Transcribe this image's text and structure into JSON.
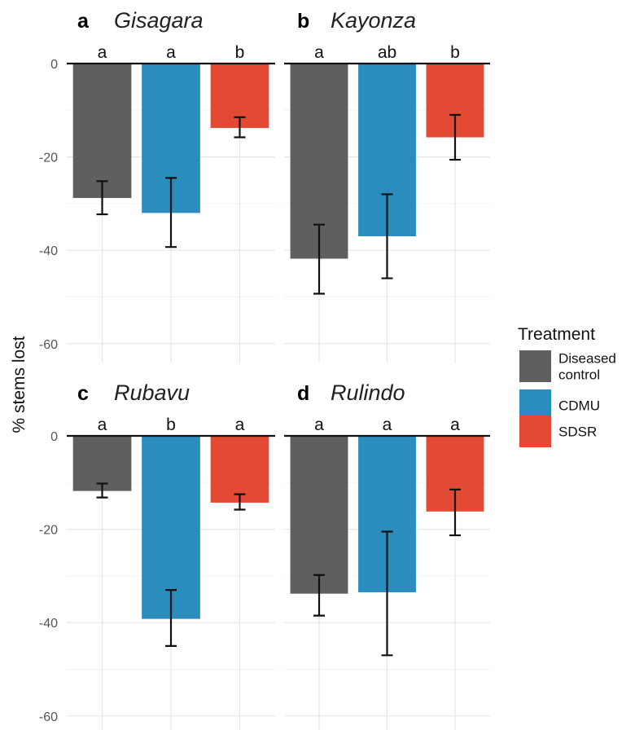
{
  "chart_data": {
    "type": "bar",
    "ylabel": "% stems lost",
    "ylim": [
      -63,
      0
    ],
    "yticks": [
      0,
      -20,
      -40,
      -60
    ],
    "grid": true,
    "legend": {
      "title": "Treatment",
      "placement": "right",
      "entries": [
        {
          "label_lines": [
            "Diseased",
            "control"
          ],
          "color": "#5f5f5f"
        },
        {
          "label_lines": [
            "CDMU"
          ],
          "color": "#2b8cbe"
        },
        {
          "label_lines": [
            "SDSR"
          ],
          "color": "#e34a33"
        }
      ]
    },
    "categories": [
      "Diseased control",
      "CDMU",
      "SDSR"
    ],
    "panels": [
      {
        "letter": "a",
        "title": "Gisagara",
        "values": [
          -28.8,
          -32.0,
          -13.8
        ],
        "error_low": [
          -32.3,
          -39.3,
          -15.8
        ],
        "error_high": [
          -25.2,
          -24.5,
          -11.5
        ],
        "significance": [
          "a",
          "a",
          "b"
        ]
      },
      {
        "letter": "b",
        "title": "Kayonza",
        "values": [
          -41.8,
          -37.0,
          -15.8
        ],
        "error_low": [
          -49.3,
          -46.0,
          -20.6
        ],
        "error_high": [
          -34.5,
          -28.0,
          -11.0
        ],
        "significance": [
          "a",
          "ab",
          "b"
        ]
      },
      {
        "letter": "c",
        "title": "Rubavu",
        "values": [
          -11.8,
          -39.2,
          -14.3
        ],
        "error_low": [
          -13.2,
          -45.0,
          -15.8
        ],
        "error_high": [
          -10.2,
          -33.0,
          -12.5
        ],
        "significance": [
          "a",
          "b",
          "a"
        ]
      },
      {
        "letter": "d",
        "title": "Rulindo",
        "values": [
          -33.8,
          -33.5,
          -16.2
        ],
        "error_low": [
          -38.5,
          -47.0,
          -21.3
        ],
        "error_high": [
          -29.8,
          -20.5,
          -11.5
        ],
        "significance": [
          "a",
          "a",
          "a"
        ]
      }
    ]
  }
}
